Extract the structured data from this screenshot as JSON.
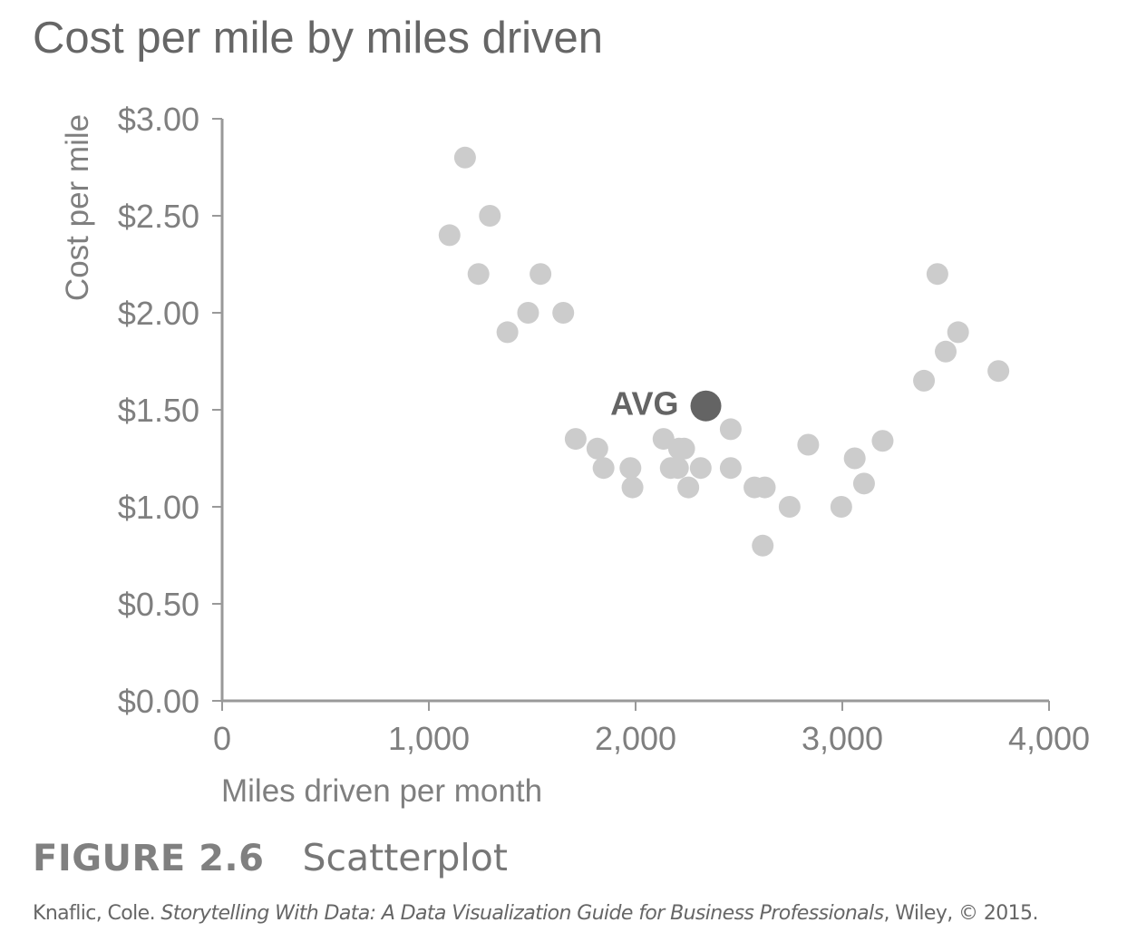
{
  "title": "Cost per mile by miles driven",
  "chart_data": {
    "type": "scatter",
    "title": "Cost per mile by miles driven",
    "xlabel": "Miles driven per month",
    "ylabel": "Cost per mile",
    "xlim": [
      0,
      4000
    ],
    "ylim": [
      0,
      3
    ],
    "x_ticks": [
      0,
      1000,
      2000,
      3000,
      4000
    ],
    "x_tick_labels": [
      "0",
      "1,000",
      "2,000",
      "3,000",
      "4,000"
    ],
    "y_ticks": [
      0,
      0.5,
      1,
      1.5,
      2,
      2.5,
      3
    ],
    "y_tick_labels": [
      "$0.00",
      "$0.50",
      "$1.00",
      "$1.50",
      "$2.00",
      "$2.50",
      "$3.00"
    ],
    "grid": false,
    "colors": {
      "points": "#cccccc",
      "avg": "#646464",
      "axis": "#999999",
      "text": "#7f7f7f"
    },
    "points": [
      {
        "x": 1100,
        "y": 2.4
      },
      {
        "x": 1175,
        "y": 2.8
      },
      {
        "x": 1240,
        "y": 2.2
      },
      {
        "x": 1295,
        "y": 2.5
      },
      {
        "x": 1380,
        "y": 1.9
      },
      {
        "x": 1480,
        "y": 2.0
      },
      {
        "x": 1540,
        "y": 2.2
      },
      {
        "x": 1650,
        "y": 2.0
      },
      {
        "x": 1710,
        "y": 1.35
      },
      {
        "x": 1815,
        "y": 1.3
      },
      {
        "x": 1845,
        "y": 1.2
      },
      {
        "x": 1975,
        "y": 1.2
      },
      {
        "x": 1985,
        "y": 1.1
      },
      {
        "x": 2135,
        "y": 1.35
      },
      {
        "x": 2170,
        "y": 1.2
      },
      {
        "x": 2205,
        "y": 1.2
      },
      {
        "x": 2210,
        "y": 1.3
      },
      {
        "x": 2235,
        "y": 1.3
      },
      {
        "x": 2255,
        "y": 1.1
      },
      {
        "x": 2315,
        "y": 1.2
      },
      {
        "x": 2460,
        "y": 1.4
      },
      {
        "x": 2460,
        "y": 1.2
      },
      {
        "x": 2575,
        "y": 1.1
      },
      {
        "x": 2615,
        "y": 0.8
      },
      {
        "x": 2625,
        "y": 1.1
      },
      {
        "x": 2745,
        "y": 1.0
      },
      {
        "x": 2835,
        "y": 1.32
      },
      {
        "x": 2995,
        "y": 1.0
      },
      {
        "x": 3060,
        "y": 1.25
      },
      {
        "x": 3105,
        "y": 1.12
      },
      {
        "x": 3195,
        "y": 1.34
      },
      {
        "x": 3395,
        "y": 1.65
      },
      {
        "x": 3460,
        "y": 2.2
      },
      {
        "x": 3500,
        "y": 1.8
      },
      {
        "x": 3560,
        "y": 1.9
      },
      {
        "x": 3755,
        "y": 1.7
      }
    ],
    "annotations": [
      {
        "label": "AVG",
        "x": 2340,
        "y": 1.52
      }
    ]
  },
  "caption": {
    "figure_label": "FIGURE 2.6",
    "figure_name": "Scatterplot",
    "citation_author": "Knaflic, Cole. ",
    "citation_title": "Storytelling With Data: A Data Visualization Guide for Business Professionals",
    "citation_rest": ", Wiley, © 2015."
  }
}
